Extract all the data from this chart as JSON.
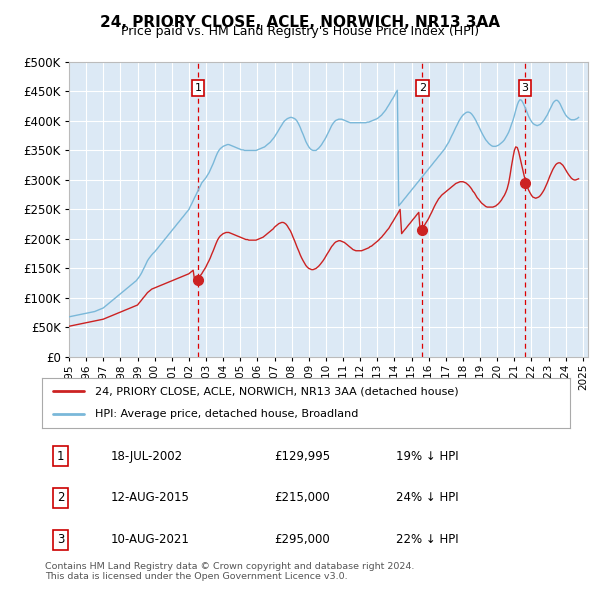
{
  "title": "24, PRIORY CLOSE, ACLE, NORWICH, NR13 3AA",
  "subtitle": "Price paid vs. HM Land Registry's House Price Index (HPI)",
  "plot_bg_color": "#dce9f5",
  "hpi_color": "#7ab8d9",
  "price_color": "#cc2222",
  "marker_color": "#cc2222",
  "dashed_line_color": "#dd0000",
  "ylim": [
    0,
    500000
  ],
  "yticks": [
    0,
    50000,
    100000,
    150000,
    200000,
    250000,
    300000,
    350000,
    400000,
    450000,
    500000
  ],
  "transactions": [
    {
      "label": "1",
      "date": "18-JUL-2002",
      "price": 129995,
      "pct": "19%",
      "year": 2002.54
    },
    {
      "label": "2",
      "date": "12-AUG-2015",
      "price": 215000,
      "pct": "24%",
      "year": 2015.62
    },
    {
      "label": "3",
      "date": "10-AUG-2021",
      "price": 295000,
      "pct": "22%",
      "year": 2021.62
    }
  ],
  "legend_label_price": "24, PRIORY CLOSE, ACLE, NORWICH, NR13 3AA (detached house)",
  "legend_label_hpi": "HPI: Average price, detached house, Broadland",
  "footer": "Contains HM Land Registry data © Crown copyright and database right 2024.\nThis data is licensed under the Open Government Licence v3.0.",
  "hpi_data_years": [
    1995.0,
    1995.08,
    1995.17,
    1995.25,
    1995.33,
    1995.42,
    1995.5,
    1995.58,
    1995.67,
    1995.75,
    1995.83,
    1995.92,
    1996.0,
    1996.08,
    1996.17,
    1996.25,
    1996.33,
    1996.42,
    1996.5,
    1996.58,
    1996.67,
    1996.75,
    1996.83,
    1996.92,
    1997.0,
    1997.08,
    1997.17,
    1997.25,
    1997.33,
    1997.42,
    1997.5,
    1997.58,
    1997.67,
    1997.75,
    1997.83,
    1997.92,
    1998.0,
    1998.08,
    1998.17,
    1998.25,
    1998.33,
    1998.42,
    1998.5,
    1998.58,
    1998.67,
    1998.75,
    1998.83,
    1998.92,
    1999.0,
    1999.08,
    1999.17,
    1999.25,
    1999.33,
    1999.42,
    1999.5,
    1999.58,
    1999.67,
    1999.75,
    1999.83,
    1999.92,
    2000.0,
    2000.08,
    2000.17,
    2000.25,
    2000.33,
    2000.42,
    2000.5,
    2000.58,
    2000.67,
    2000.75,
    2000.83,
    2000.92,
    2001.0,
    2001.08,
    2001.17,
    2001.25,
    2001.33,
    2001.42,
    2001.5,
    2001.58,
    2001.67,
    2001.75,
    2001.83,
    2001.92,
    2002.0,
    2002.08,
    2002.17,
    2002.25,
    2002.33,
    2002.42,
    2002.5,
    2002.58,
    2002.67,
    2002.75,
    2002.83,
    2002.92,
    2003.0,
    2003.08,
    2003.17,
    2003.25,
    2003.33,
    2003.42,
    2003.5,
    2003.58,
    2003.67,
    2003.75,
    2003.83,
    2003.92,
    2004.0,
    2004.08,
    2004.17,
    2004.25,
    2004.33,
    2004.42,
    2004.5,
    2004.58,
    2004.67,
    2004.75,
    2004.83,
    2004.92,
    2005.0,
    2005.08,
    2005.17,
    2005.25,
    2005.33,
    2005.42,
    2005.5,
    2005.58,
    2005.67,
    2005.75,
    2005.83,
    2005.92,
    2006.0,
    2006.08,
    2006.17,
    2006.25,
    2006.33,
    2006.42,
    2006.5,
    2006.58,
    2006.67,
    2006.75,
    2006.83,
    2006.92,
    2007.0,
    2007.08,
    2007.17,
    2007.25,
    2007.33,
    2007.42,
    2007.5,
    2007.58,
    2007.67,
    2007.75,
    2007.83,
    2007.92,
    2008.0,
    2008.08,
    2008.17,
    2008.25,
    2008.33,
    2008.42,
    2008.5,
    2008.58,
    2008.67,
    2008.75,
    2008.83,
    2008.92,
    2009.0,
    2009.08,
    2009.17,
    2009.25,
    2009.33,
    2009.42,
    2009.5,
    2009.58,
    2009.67,
    2009.75,
    2009.83,
    2009.92,
    2010.0,
    2010.08,
    2010.17,
    2010.25,
    2010.33,
    2010.42,
    2010.5,
    2010.58,
    2010.67,
    2010.75,
    2010.83,
    2010.92,
    2011.0,
    2011.08,
    2011.17,
    2011.25,
    2011.33,
    2011.42,
    2011.5,
    2011.58,
    2011.67,
    2011.75,
    2011.83,
    2011.92,
    2012.0,
    2012.08,
    2012.17,
    2012.25,
    2012.33,
    2012.42,
    2012.5,
    2012.58,
    2012.67,
    2012.75,
    2012.83,
    2012.92,
    2013.0,
    2013.08,
    2013.17,
    2013.25,
    2013.33,
    2013.42,
    2013.5,
    2013.58,
    2013.67,
    2013.75,
    2013.83,
    2013.92,
    2014.0,
    2014.08,
    2014.17,
    2014.25,
    2014.33,
    2014.42,
    2014.5,
    2014.58,
    2014.67,
    2014.75,
    2014.83,
    2014.92,
    2015.0,
    2015.08,
    2015.17,
    2015.25,
    2015.33,
    2015.42,
    2015.5,
    2015.58,
    2015.67,
    2015.75,
    2015.83,
    2015.92,
    2016.0,
    2016.08,
    2016.17,
    2016.25,
    2016.33,
    2016.42,
    2016.5,
    2016.58,
    2016.67,
    2016.75,
    2016.83,
    2016.92,
    2017.0,
    2017.08,
    2017.17,
    2017.25,
    2017.33,
    2017.42,
    2017.5,
    2017.58,
    2017.67,
    2017.75,
    2017.83,
    2017.92,
    2018.0,
    2018.08,
    2018.17,
    2018.25,
    2018.33,
    2018.42,
    2018.5,
    2018.58,
    2018.67,
    2018.75,
    2018.83,
    2018.92,
    2019.0,
    2019.08,
    2019.17,
    2019.25,
    2019.33,
    2019.42,
    2019.5,
    2019.58,
    2019.67,
    2019.75,
    2019.83,
    2019.92,
    2020.0,
    2020.08,
    2020.17,
    2020.25,
    2020.33,
    2020.42,
    2020.5,
    2020.58,
    2020.67,
    2020.75,
    2020.83,
    2020.92,
    2021.0,
    2021.08,
    2021.17,
    2021.25,
    2021.33,
    2021.42,
    2021.5,
    2021.58,
    2021.67,
    2021.75,
    2021.83,
    2021.92,
    2022.0,
    2022.08,
    2022.17,
    2022.25,
    2022.33,
    2022.42,
    2022.5,
    2022.58,
    2022.67,
    2022.75,
    2022.83,
    2022.92,
    2023.0,
    2023.08,
    2023.17,
    2023.25,
    2023.33,
    2023.42,
    2023.5,
    2023.58,
    2023.67,
    2023.75,
    2023.83,
    2023.92,
    2024.0,
    2024.08,
    2024.17,
    2024.25,
    2024.33,
    2024.42,
    2024.5,
    2024.58,
    2024.67,
    2024.75
  ],
  "hpi_data_values": [
    68000,
    68500,
    69000,
    69500,
    70000,
    70500,
    71000,
    71500,
    72000,
    72500,
    73000,
    73500,
    74000,
    74500,
    75000,
    75500,
    76000,
    76500,
    77000,
    78000,
    79000,
    80000,
    81000,
    82000,
    83000,
    85000,
    87000,
    89000,
    91000,
    93000,
    95000,
    97000,
    99000,
    101000,
    103000,
    105000,
    107000,
    109000,
    111000,
    113000,
    115000,
    117000,
    119000,
    121000,
    123000,
    125000,
    127000,
    129000,
    132000,
    135000,
    139000,
    143000,
    148000,
    153000,
    158000,
    163000,
    167000,
    170000,
    173000,
    176000,
    178000,
    181000,
    184000,
    187000,
    190000,
    193000,
    196000,
    199000,
    202000,
    205000,
    208000,
    211000,
    214000,
    217000,
    220000,
    223000,
    226000,
    229000,
    232000,
    235000,
    238000,
    241000,
    244000,
    247000,
    250000,
    255000,
    260000,
    265000,
    270000,
    275000,
    280000,
    285000,
    290000,
    295000,
    298000,
    301000,
    304000,
    308000,
    312000,
    317000,
    322000,
    328000,
    334000,
    340000,
    346000,
    350000,
    353000,
    355000,
    357000,
    358000,
    359000,
    360000,
    360000,
    359000,
    358000,
    357000,
    356000,
    355000,
    354000,
    353000,
    352000,
    351000,
    351000,
    350000,
    350000,
    350000,
    350000,
    350000,
    350000,
    350000,
    350000,
    350000,
    351000,
    352000,
    353000,
    354000,
    355000,
    356000,
    358000,
    360000,
    362000,
    364000,
    367000,
    370000,
    373000,
    377000,
    381000,
    385000,
    389000,
    393000,
    397000,
    400000,
    402000,
    404000,
    405000,
    406000,
    406000,
    405000,
    404000,
    402000,
    399000,
    394000,
    389000,
    383000,
    377000,
    371000,
    365000,
    360000,
    356000,
    353000,
    351000,
    350000,
    350000,
    350000,
    352000,
    354000,
    357000,
    360000,
    364000,
    368000,
    372000,
    377000,
    382000,
    387000,
    392000,
    396000,
    399000,
    401000,
    402000,
    403000,
    403000,
    403000,
    402000,
    401000,
    400000,
    399000,
    398000,
    397000,
    397000,
    397000,
    397000,
    397000,
    397000,
    397000,
    397000,
    397000,
    397000,
    397000,
    397000,
    398000,
    398000,
    399000,
    400000,
    401000,
    402000,
    403000,
    404000,
    406000,
    408000,
    410000,
    413000,
    416000,
    419000,
    423000,
    427000,
    431000,
    435000,
    439000,
    443000,
    448000,
    452000,
    256000,
    259000,
    262000,
    265000,
    268000,
    271000,
    274000,
    277000,
    280000,
    283000,
    286000,
    289000,
    292000,
    295000,
    298000,
    301000,
    304000,
    307000,
    310000,
    313000,
    316000,
    319000,
    322000,
    325000,
    328000,
    331000,
    334000,
    337000,
    340000,
    343000,
    346000,
    349000,
    352000,
    356000,
    360000,
    364000,
    369000,
    374000,
    379000,
    384000,
    389000,
    394000,
    399000,
    403000,
    407000,
    410000,
    412000,
    414000,
    415000,
    415000,
    414000,
    412000,
    409000,
    405000,
    401000,
    396000,
    391000,
    386000,
    381000,
    376000,
    372000,
    368000,
    365000,
    362000,
    360000,
    358000,
    357000,
    357000,
    357000,
    358000,
    359000,
    361000,
    363000,
    365000,
    368000,
    372000,
    376000,
    381000,
    387000,
    394000,
    401000,
    409000,
    418000,
    427000,
    433000,
    436000,
    435000,
    431000,
    426000,
    420000,
    414000,
    408000,
    403000,
    399000,
    396000,
    394000,
    393000,
    392000,
    393000,
    394000,
    396000,
    399000,
    402000,
    406000,
    410000,
    415000,
    420000,
    425000,
    430000,
    433000,
    435000,
    435000,
    433000,
    429000,
    424000,
    419000,
    414000,
    410000,
    407000,
    405000,
    403000,
    402000,
    402000,
    402000,
    403000,
    404000,
    406000
  ],
  "price_data_years": [
    1995.0,
    1995.08,
    1995.17,
    1995.25,
    1995.33,
    1995.42,
    1995.5,
    1995.58,
    1995.67,
    1995.75,
    1995.83,
    1995.92,
    1996.0,
    1996.08,
    1996.17,
    1996.25,
    1996.33,
    1996.42,
    1996.5,
    1996.58,
    1996.67,
    1996.75,
    1996.83,
    1996.92,
    1997.0,
    1997.08,
    1997.17,
    1997.25,
    1997.33,
    1997.42,
    1997.5,
    1997.58,
    1997.67,
    1997.75,
    1997.83,
    1997.92,
    1998.0,
    1998.08,
    1998.17,
    1998.25,
    1998.33,
    1998.42,
    1998.5,
    1998.58,
    1998.67,
    1998.75,
    1998.83,
    1998.92,
    1999.0,
    1999.08,
    1999.17,
    1999.25,
    1999.33,
    1999.42,
    1999.5,
    1999.58,
    1999.67,
    1999.75,
    1999.83,
    1999.92,
    2000.0,
    2000.08,
    2000.17,
    2000.25,
    2000.33,
    2000.42,
    2000.5,
    2000.58,
    2000.67,
    2000.75,
    2000.83,
    2000.92,
    2001.0,
    2001.08,
    2001.17,
    2001.25,
    2001.33,
    2001.42,
    2001.5,
    2001.58,
    2001.67,
    2001.75,
    2001.83,
    2001.92,
    2002.0,
    2002.08,
    2002.17,
    2002.25,
    2002.33,
    2002.42,
    2002.5,
    2002.58,
    2002.67,
    2002.75,
    2002.83,
    2002.92,
    2003.0,
    2003.08,
    2003.17,
    2003.25,
    2003.33,
    2003.42,
    2003.5,
    2003.58,
    2003.67,
    2003.75,
    2003.83,
    2003.92,
    2004.0,
    2004.08,
    2004.17,
    2004.25,
    2004.33,
    2004.42,
    2004.5,
    2004.58,
    2004.67,
    2004.75,
    2004.83,
    2004.92,
    2005.0,
    2005.08,
    2005.17,
    2005.25,
    2005.33,
    2005.42,
    2005.5,
    2005.58,
    2005.67,
    2005.75,
    2005.83,
    2005.92,
    2006.0,
    2006.08,
    2006.17,
    2006.25,
    2006.33,
    2006.42,
    2006.5,
    2006.58,
    2006.67,
    2006.75,
    2006.83,
    2006.92,
    2007.0,
    2007.08,
    2007.17,
    2007.25,
    2007.33,
    2007.42,
    2007.5,
    2007.58,
    2007.67,
    2007.75,
    2007.83,
    2007.92,
    2008.0,
    2008.08,
    2008.17,
    2008.25,
    2008.33,
    2008.42,
    2008.5,
    2008.58,
    2008.67,
    2008.75,
    2008.83,
    2008.92,
    2009.0,
    2009.08,
    2009.17,
    2009.25,
    2009.33,
    2009.42,
    2009.5,
    2009.58,
    2009.67,
    2009.75,
    2009.83,
    2009.92,
    2010.0,
    2010.08,
    2010.17,
    2010.25,
    2010.33,
    2010.42,
    2010.5,
    2010.58,
    2010.67,
    2010.75,
    2010.83,
    2010.92,
    2011.0,
    2011.08,
    2011.17,
    2011.25,
    2011.33,
    2011.42,
    2011.5,
    2011.58,
    2011.67,
    2011.75,
    2011.83,
    2011.92,
    2012.0,
    2012.08,
    2012.17,
    2012.25,
    2012.33,
    2012.42,
    2012.5,
    2012.58,
    2012.67,
    2012.75,
    2012.83,
    2012.92,
    2013.0,
    2013.08,
    2013.17,
    2013.25,
    2013.33,
    2013.42,
    2013.5,
    2013.58,
    2013.67,
    2013.75,
    2013.83,
    2013.92,
    2014.0,
    2014.08,
    2014.17,
    2014.25,
    2014.33,
    2014.42,
    2014.5,
    2014.58,
    2014.67,
    2014.75,
    2014.83,
    2014.92,
    2015.0,
    2015.08,
    2015.17,
    2015.25,
    2015.33,
    2015.42,
    2015.5,
    2015.58,
    2015.67,
    2015.75,
    2015.83,
    2015.92,
    2016.0,
    2016.08,
    2016.17,
    2016.25,
    2016.33,
    2016.42,
    2016.5,
    2016.58,
    2016.67,
    2016.75,
    2016.83,
    2016.92,
    2017.0,
    2017.08,
    2017.17,
    2017.25,
    2017.33,
    2017.42,
    2017.5,
    2017.58,
    2017.67,
    2017.75,
    2017.83,
    2017.92,
    2018.0,
    2018.08,
    2018.17,
    2018.25,
    2018.33,
    2018.42,
    2018.5,
    2018.58,
    2018.67,
    2018.75,
    2018.83,
    2018.92,
    2019.0,
    2019.08,
    2019.17,
    2019.25,
    2019.33,
    2019.42,
    2019.5,
    2019.58,
    2019.67,
    2019.75,
    2019.83,
    2019.92,
    2020.0,
    2020.08,
    2020.17,
    2020.25,
    2020.33,
    2020.42,
    2020.5,
    2020.58,
    2020.67,
    2020.75,
    2020.83,
    2020.92,
    2021.0,
    2021.08,
    2021.17,
    2021.25,
    2021.33,
    2021.42,
    2021.5,
    2021.58,
    2021.67,
    2021.75,
    2021.83,
    2021.92,
    2022.0,
    2022.08,
    2022.17,
    2022.25,
    2022.33,
    2022.42,
    2022.5,
    2022.58,
    2022.67,
    2022.75,
    2022.83,
    2022.92,
    2023.0,
    2023.08,
    2023.17,
    2023.25,
    2023.33,
    2023.42,
    2023.5,
    2023.58,
    2023.67,
    2023.75,
    2023.83,
    2023.92,
    2024.0,
    2024.08,
    2024.17,
    2024.25,
    2024.33,
    2024.42,
    2024.5,
    2024.58,
    2024.67,
    2024.75
  ],
  "price_data_values": [
    52000,
    52500,
    53000,
    53500,
    54000,
    54500,
    55000,
    55500,
    56000,
    56500,
    57000,
    57500,
    58000,
    58500,
    59000,
    59500,
    60000,
    60500,
    61000,
    61500,
    62000,
    62500,
    63000,
    63500,
    64000,
    65000,
    66000,
    67000,
    68000,
    69000,
    70000,
    71000,
    72000,
    73000,
    74000,
    75000,
    76000,
    77000,
    78000,
    79000,
    80000,
    81000,
    82000,
    83000,
    84000,
    85000,
    86000,
    87000,
    88000,
    91000,
    94000,
    97000,
    100000,
    103000,
    106000,
    109000,
    111000,
    113000,
    115000,
    116000,
    117000,
    118000,
    119000,
    120000,
    121000,
    122000,
    123000,
    124000,
    125000,
    126000,
    127000,
    128000,
    129000,
    130000,
    131000,
    132000,
    133000,
    134000,
    135000,
    136000,
    137000,
    138000,
    139000,
    140000,
    141000,
    143000,
    145000,
    147000,
    129995,
    131000,
    133000,
    135000,
    138000,
    141000,
    145000,
    149000,
    153000,
    158000,
    163000,
    168000,
    174000,
    180000,
    186000,
    192000,
    198000,
    202000,
    205000,
    207000,
    209000,
    210000,
    211000,
    211000,
    211000,
    210000,
    209000,
    208000,
    207000,
    206000,
    205000,
    204000,
    203000,
    202000,
    201000,
    200000,
    199000,
    199000,
    198000,
    198000,
    198000,
    198000,
    198000,
    198000,
    199000,
    200000,
    201000,
    202000,
    203000,
    205000,
    207000,
    209000,
    211000,
    213000,
    215000,
    217000,
    220000,
    222000,
    224000,
    226000,
    227000,
    228000,
    228000,
    227000,
    225000,
    222000,
    218000,
    214000,
    209000,
    203000,
    197000,
    191000,
    185000,
    179000,
    173000,
    168000,
    163000,
    159000,
    155000,
    152000,
    150000,
    149000,
    148000,
    148000,
    149000,
    150000,
    152000,
    154000,
    157000,
    160000,
    163000,
    167000,
    171000,
    175000,
    179000,
    183000,
    187000,
    190000,
    193000,
    195000,
    196000,
    197000,
    197000,
    196000,
    195000,
    194000,
    192000,
    190000,
    188000,
    186000,
    184000,
    182000,
    181000,
    180000,
    180000,
    180000,
    180000,
    180000,
    181000,
    182000,
    183000,
    184000,
    185000,
    187000,
    188000,
    190000,
    192000,
    194000,
    196000,
    198000,
    201000,
    203000,
    206000,
    209000,
    212000,
    215000,
    218000,
    222000,
    226000,
    230000,
    234000,
    238000,
    242000,
    246000,
    250000,
    209000,
    212000,
    215000,
    218000,
    221000,
    224000,
    227000,
    230000,
    233000,
    236000,
    239000,
    242000,
    245000,
    215000,
    217000,
    220000,
    223000,
    227000,
    231000,
    235000,
    240000,
    245000,
    250000,
    255000,
    260000,
    264000,
    268000,
    271000,
    274000,
    276000,
    278000,
    280000,
    282000,
    284000,
    286000,
    288000,
    290000,
    292000,
    294000,
    295000,
    296000,
    297000,
    297000,
    297000,
    296000,
    295000,
    293000,
    291000,
    288000,
    285000,
    281000,
    278000,
    274000,
    270000,
    267000,
    264000,
    261000,
    259000,
    257000,
    255000,
    254000,
    254000,
    254000,
    254000,
    254000,
    255000,
    256000,
    258000,
    260000,
    263000,
    266000,
    270000,
    274000,
    279000,
    285000,
    295000,
    308000,
    323000,
    338000,
    350000,
    356000,
    355000,
    348000,
    338000,
    327000,
    316000,
    306000,
    297000,
    289000,
    283000,
    278000,
    274000,
    271000,
    270000,
    269000,
    270000,
    271000,
    273000,
    276000,
    280000,
    284000,
    289000,
    295000,
    301000,
    307000,
    313000,
    318000,
    322000,
    326000,
    328000,
    329000,
    329000,
    327000,
    325000,
    321000,
    317000,
    313000,
    309000,
    306000,
    303000,
    301000,
    300000,
    300000,
    301000,
    302000
  ]
}
